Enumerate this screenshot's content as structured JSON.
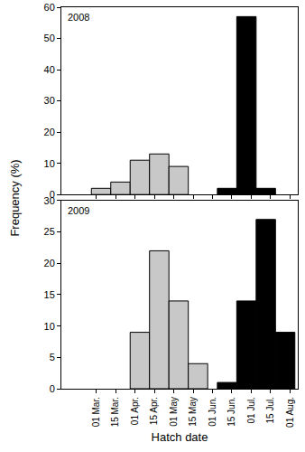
{
  "xlabel": "Hatch date",
  "ylabel": "Frequency (%)",
  "chart_data": [
    {
      "type": "bar",
      "title": "2008",
      "bins": [
        "01 Mar.",
        "15 Mar.",
        "01 Apr.",
        "15 Apr.",
        "01 May",
        "15 May",
        "01 Jun.",
        "15 Jun.",
        "01 Jul.",
        "15 Jul.",
        "01 Aug."
      ],
      "series": [
        {
          "color": "#c8c8c8",
          "values": [
            2,
            4,
            11,
            13,
            9,
            null,
            null,
            null,
            null,
            null
          ]
        },
        {
          "color": "#000000",
          "values": [
            null,
            null,
            null,
            null,
            null,
            null,
            2,
            57,
            2,
            null
          ]
        }
      ],
      "ylim": [
        0,
        60
      ],
      "yticks": [
        0,
        10,
        20,
        30,
        40,
        50,
        60
      ],
      "tick_labels": "y"
    },
    {
      "type": "bar",
      "title": "2009",
      "bins": [
        "01 Mar.",
        "15 Mar.",
        "01 Apr.",
        "15 Apr.",
        "01 May",
        "15 May",
        "01 Jun.",
        "15 Jun.",
        "01 Jul.",
        "15 Jul.",
        "01 Aug."
      ],
      "series": [
        {
          "color": "#c8c8c8",
          "values": [
            null,
            null,
            9,
            22,
            14,
            4,
            null,
            null,
            null,
            null
          ]
        },
        {
          "color": "#000000",
          "values": [
            null,
            null,
            null,
            null,
            null,
            null,
            1,
            14,
            27,
            9
          ]
        }
      ],
      "ylim": [
        0,
        30
      ],
      "yticks": [
        0,
        5,
        10,
        15,
        20,
        25,
        30
      ]
    }
  ]
}
